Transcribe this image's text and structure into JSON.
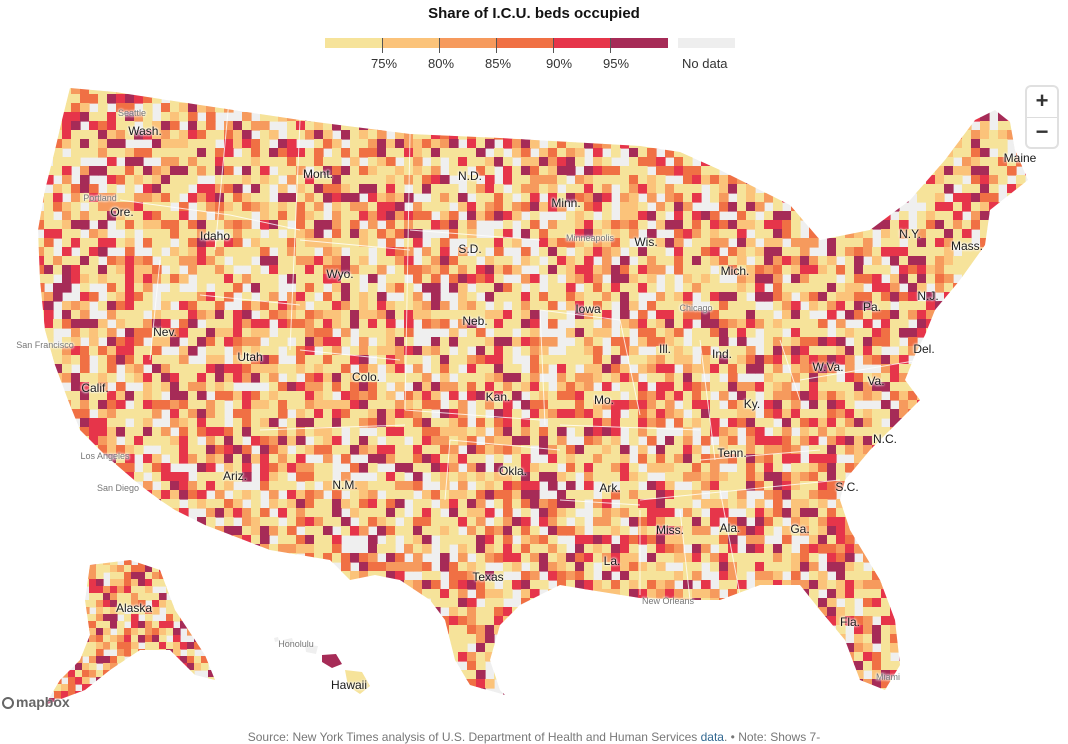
{
  "title": "Share of I.C.U. beds occupied",
  "legend": {
    "colors": [
      "#f6e39a",
      "#fbc37a",
      "#f69a5d",
      "#f07044",
      "#e6354a",
      "#a62b57"
    ],
    "nodata_color": "#eeeeee",
    "thresholds": [
      "75%",
      "80%",
      "85%",
      "90%",
      "95%"
    ],
    "nodata_label": "No data"
  },
  "map": {
    "land_color": "#efefef",
    "states": [
      {
        "id": "wash",
        "label": "Wash."
      },
      {
        "id": "ore",
        "label": "Ore."
      },
      {
        "id": "calif",
        "label": "Calif."
      },
      {
        "id": "nev",
        "label": "Nev."
      },
      {
        "id": "idaho",
        "label": "Idaho"
      },
      {
        "id": "mont",
        "label": "Mont."
      },
      {
        "id": "wyo",
        "label": "Wyo."
      },
      {
        "id": "utah",
        "label": "Utah"
      },
      {
        "id": "colo",
        "label": "Colo."
      },
      {
        "id": "ariz",
        "label": "Ariz."
      },
      {
        "id": "nm",
        "label": "N.M."
      },
      {
        "id": "nd",
        "label": "N.D."
      },
      {
        "id": "sd",
        "label": "S.D."
      },
      {
        "id": "neb",
        "label": "Neb."
      },
      {
        "id": "kan",
        "label": "Kan."
      },
      {
        "id": "okla",
        "label": "Okla."
      },
      {
        "id": "texas",
        "label": "Texas"
      },
      {
        "id": "minn",
        "label": "Minn."
      },
      {
        "id": "iowa",
        "label": "Iowa"
      },
      {
        "id": "mo",
        "label": "Mo."
      },
      {
        "id": "ark",
        "label": "Ark."
      },
      {
        "id": "la",
        "label": "La."
      },
      {
        "id": "wis",
        "label": "Wis."
      },
      {
        "id": "ill",
        "label": "Ill."
      },
      {
        "id": "mich",
        "label": "Mich."
      },
      {
        "id": "ind",
        "label": "Ind."
      },
      {
        "id": "ky",
        "label": "Ky."
      },
      {
        "id": "tenn",
        "label": "Tenn."
      },
      {
        "id": "miss",
        "label": "Miss."
      },
      {
        "id": "ala",
        "label": "Ala."
      },
      {
        "id": "ga",
        "label": "Ga."
      },
      {
        "id": "fla",
        "label": "Fla."
      },
      {
        "id": "sc",
        "label": "S.C."
      },
      {
        "id": "nc",
        "label": "N.C."
      },
      {
        "id": "va",
        "label": "Va."
      },
      {
        "id": "wva",
        "label": "W.Va."
      },
      {
        "id": "pa",
        "label": "Pa."
      },
      {
        "id": "ny",
        "label": "N.Y."
      },
      {
        "id": "nj",
        "label": "N.J."
      },
      {
        "id": "del",
        "label": "Del."
      },
      {
        "id": "mass",
        "label": "Mass."
      },
      {
        "id": "maine",
        "label": "Maine"
      },
      {
        "id": "alaska",
        "label": "Alaska"
      },
      {
        "id": "hawaii",
        "label": "Hawaii"
      }
    ],
    "cities": [
      {
        "id": "seattle",
        "label": "Seattle"
      },
      {
        "id": "portland",
        "label": "Portland"
      },
      {
        "id": "sanfrancisco",
        "label": "San Francisco"
      },
      {
        "id": "losangeles",
        "label": "Los Angeles"
      },
      {
        "id": "sandiego",
        "label": "San Diego"
      },
      {
        "id": "minneapolis",
        "label": "Minneapolis"
      },
      {
        "id": "chicago",
        "label": "Chicago"
      },
      {
        "id": "neworleans",
        "label": "New Orleans"
      },
      {
        "id": "miami",
        "label": "Miami"
      },
      {
        "id": "honolulu",
        "label": "Honolulu"
      }
    ]
  },
  "zoom": {
    "in_label": "+",
    "out_label": "−"
  },
  "attribution": "mapbox",
  "source": {
    "prefix": "Source: New York Times analysis of U.S. Department of Health and Human Services ",
    "link_text": "data",
    "suffix": ".  •  Note: Shows 7-"
  }
}
